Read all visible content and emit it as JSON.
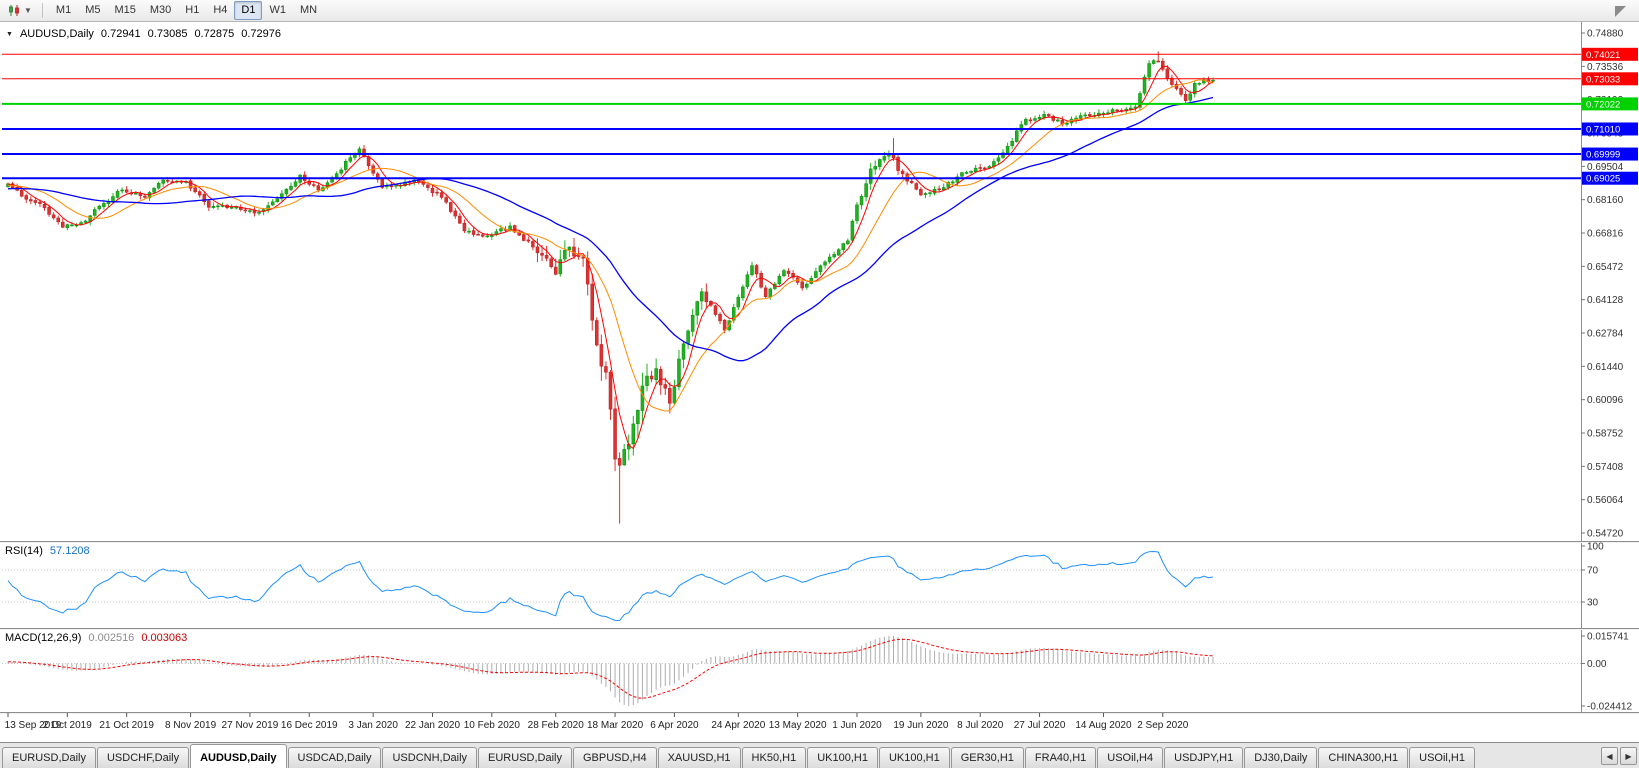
{
  "toolbar": {
    "chart_type_icon": "candlestick-chart-icon",
    "timeframes": [
      "M1",
      "M5",
      "M15",
      "M30",
      "H1",
      "H4",
      "D1",
      "W1",
      "MN"
    ],
    "active": "D1"
  },
  "chart": {
    "title": "AUDUSD,Daily",
    "open": "0.72941",
    "high": "0.73085",
    "low": "0.72875",
    "close": "0.72976"
  },
  "rsi": {
    "label": "RSI(14)",
    "value": "57.1208"
  },
  "macd": {
    "label": "MACD(12,26,9)",
    "value_main": "0.002516",
    "value_signal": "0.003063"
  },
  "tabs": {
    "items": [
      "EURUSD,Daily",
      "USDCHF,Daily",
      "AUDUSD,Daily",
      "USDCAD,Daily",
      "USDCNH,Daily",
      "EURUSD,Daily",
      "GBPUSD,H4",
      "XAUUSD,H1",
      "HK50,H1",
      "UK100,H1",
      "UK100,H1",
      "GER30,H1",
      "FRA40,H1",
      "USOil,H4",
      "USDJPY,H1",
      "DJ30,Daily",
      "CHINA300,H1",
      "USOil,H1"
    ],
    "active_index": 2,
    "scroll_left": "◀",
    "scroll_right": "▶"
  },
  "chart_data": {
    "type": "candlestick",
    "symbol": "AUDUSD",
    "timeframe": "Daily",
    "current_bar": {
      "open": 0.72941,
      "high": 0.73085,
      "low": 0.72875,
      "close": 0.72976
    },
    "y_range": [
      0.5472,
      0.7488
    ],
    "date_range": [
      "2019-09-13",
      "2020-09-17"
    ],
    "price_axis_labels": [
      0.7488,
      0.73536,
      0.72192,
      0.70848,
      0.69504,
      0.6816,
      0.66816,
      0.65472,
      0.64128,
      0.62784,
      0.6144,
      0.60096,
      0.58752,
      0.57408,
      0.56064,
      0.5472
    ],
    "levels": [
      {
        "text": "0.74021",
        "value": 0.74021,
        "color": "#FF0000",
        "width": 1
      },
      {
        "text": "0.73033",
        "value": 0.73033,
        "color": "#FF0000",
        "width": 1
      },
      {
        "text": "0.72022",
        "value": 0.72022,
        "color": "#00D200",
        "width": 2
      },
      {
        "text": "0.71010",
        "value": 0.7101,
        "color": "#0000FF",
        "width": 2
      },
      {
        "text": "0.69999",
        "value": 0.69999,
        "color": "#0000FF",
        "width": 2
      },
      {
        "text": "0.69025",
        "value": 0.69025,
        "color": "#0000FF",
        "width": 2
      }
    ],
    "date_axis": [
      {
        "text": "13 Sep 2019",
        "d": "2019-09-13"
      },
      {
        "text": "2 Oct 2019",
        "d": "2019-10-02"
      },
      {
        "text": "21 Oct 2019",
        "d": "2019-10-21"
      },
      {
        "text": "8 Nov 2019",
        "d": "2019-11-08"
      },
      {
        "text": "27 Nov 2019",
        "d": "2019-11-27"
      },
      {
        "text": "16 Dec 2019",
        "d": "2019-12-16"
      },
      {
        "text": "3 Jan 2020",
        "d": "2020-01-03"
      },
      {
        "text": "22 Jan 2020",
        "d": "2020-01-22"
      },
      {
        "text": "10 Feb 2020",
        "d": "2020-02-10"
      },
      {
        "text": "28 Feb 2020",
        "d": "2020-02-28"
      },
      {
        "text": "18 Mar 2020",
        "d": "2020-03-18"
      },
      {
        "text": "6 Apr 2020",
        "d": "2020-04-06"
      },
      {
        "text": "24 Apr 2020",
        "d": "2020-04-24"
      },
      {
        "text": "13 May 2020",
        "d": "2020-05-13"
      },
      {
        "text": "1 Jun 2020",
        "d": "2020-06-01"
      },
      {
        "text": "19 Jun 2020",
        "d": "2020-06-19"
      },
      {
        "text": "8 Jul 2020",
        "d": "2020-07-08"
      },
      {
        "text": "27 Jul 2020",
        "d": "2020-07-27"
      },
      {
        "text": "14 Aug 2020",
        "d": "2020-08-14"
      },
      {
        "text": "2 Sep 2020",
        "d": "2020-09-02"
      }
    ],
    "price_path": [
      {
        "d": "2019-09-13",
        "c": 0.688
      },
      {
        "d": "2019-09-18",
        "c": 0.683
      },
      {
        "d": "2019-09-24",
        "c": 0.68
      },
      {
        "d": "2019-10-01",
        "c": 0.6705
      },
      {
        "d": "2019-10-08",
        "c": 0.673
      },
      {
        "d": "2019-10-11",
        "c": 0.679
      },
      {
        "d": "2019-10-18",
        "c": 0.6855
      },
      {
        "d": "2019-10-25",
        "c": 0.6825
      },
      {
        "d": "2019-10-31",
        "c": 0.6895
      },
      {
        "d": "2019-11-07",
        "c": 0.689
      },
      {
        "d": "2019-11-14",
        "c": 0.6785
      },
      {
        "d": "2019-11-21",
        "c": 0.6785
      },
      {
        "d": "2019-11-29",
        "c": 0.6765
      },
      {
        "d": "2019-12-06",
        "c": 0.684
      },
      {
        "d": "2019-12-12",
        "c": 0.6915
      },
      {
        "d": "2019-12-18",
        "c": 0.6855
      },
      {
        "d": "2019-12-23",
        "c": 0.6905
      },
      {
        "d": "2019-12-31",
        "c": 0.7021
      },
      {
        "d": "2020-01-07",
        "c": 0.6865
      },
      {
        "d": "2020-01-16",
        "c": 0.6895
      },
      {
        "d": "2020-01-24",
        "c": 0.6825
      },
      {
        "d": "2020-01-31",
        "c": 0.669
      },
      {
        "d": "2020-02-07",
        "c": 0.667
      },
      {
        "d": "2020-02-14",
        "c": 0.671
      },
      {
        "d": "2020-02-21",
        "c": 0.6625
      },
      {
        "d": "2020-02-28",
        "c": 0.6515
      },
      {
        "d": "2020-03-04",
        "c": 0.6625
      },
      {
        "d": "2020-03-09",
        "c": 0.658
      },
      {
        "d": "2020-03-12",
        "c": 0.623
      },
      {
        "d": "2020-03-16",
        "c": 0.612
      },
      {
        "d": "2020-03-18",
        "c": 0.577
      },
      {
        "d": "2020-03-19",
        "c": 0.5745
      },
      {
        "d": "2020-03-23",
        "c": 0.583
      },
      {
        "d": "2020-03-26",
        "c": 0.6065
      },
      {
        "d": "2020-03-31",
        "c": 0.6135
      },
      {
        "d": "2020-04-03",
        "c": 0.5995
      },
      {
        "d": "2020-04-08",
        "c": 0.6235
      },
      {
        "d": "2020-04-14",
        "c": 0.6445
      },
      {
        "d": "2020-04-21",
        "c": 0.629
      },
      {
        "d": "2020-04-29",
        "c": 0.655
      },
      {
        "d": "2020-05-04",
        "c": 0.6425
      },
      {
        "d": "2020-05-08",
        "c": 0.653
      },
      {
        "d": "2020-05-14",
        "c": 0.646
      },
      {
        "d": "2020-05-21",
        "c": 0.6565
      },
      {
        "d": "2020-05-28",
        "c": 0.665
      },
      {
        "d": "2020-06-01",
        "c": 0.6795
      },
      {
        "d": "2020-06-04",
        "c": 0.694
      },
      {
        "d": "2020-06-10",
        "c": 0.7
      },
      {
        "d": "2020-06-15",
        "c": 0.692
      },
      {
        "d": "2020-06-19",
        "c": 0.6835
      },
      {
        "d": "2020-06-26",
        "c": 0.6865
      },
      {
        "d": "2020-07-02",
        "c": 0.6925
      },
      {
        "d": "2020-07-10",
        "c": 0.695
      },
      {
        "d": "2020-07-15",
        "c": 0.7005
      },
      {
        "d": "2020-07-22",
        "c": 0.714
      },
      {
        "d": "2020-07-28",
        "c": 0.716
      },
      {
        "d": "2020-08-03",
        "c": 0.712
      },
      {
        "d": "2020-08-07",
        "c": 0.7155
      },
      {
        "d": "2020-08-13",
        "c": 0.7165
      },
      {
        "d": "2020-08-19",
        "c": 0.7175
      },
      {
        "d": "2020-08-25",
        "c": 0.719
      },
      {
        "d": "2020-08-28",
        "c": 0.7365
      },
      {
        "d": "2020-09-01",
        "c": 0.7375
      },
      {
        "d": "2020-09-04",
        "c": 0.728
      },
      {
        "d": "2020-09-09",
        "c": 0.7215
      },
      {
        "d": "2020-09-11",
        "c": 0.7285
      },
      {
        "d": "2020-09-15",
        "c": 0.73
      },
      {
        "d": "2020-09-17",
        "c": 0.72976
      }
    ],
    "wick_overrides": [
      {
        "d": "2020-03-19",
        "low": 0.551
      },
      {
        "d": "2020-09-01",
        "high": 0.7414
      },
      {
        "d": "2020-06-11",
        "high": 0.7064
      }
    ],
    "moving_averages": [
      {
        "name": "fast",
        "period": 5,
        "color": "#FF0000"
      },
      {
        "name": "medium",
        "period": 13,
        "color": "#FF8C00"
      },
      {
        "name": "slow",
        "period": 34,
        "color": "#0000FF"
      }
    ],
    "style": {
      "candle_up": "#1FB31F",
      "candle_up_border": "#0E870E",
      "candle_down": "#E03131",
      "candle_down_border": "#B02020"
    },
    "indicators": {
      "rsi": {
        "period": 14,
        "current": 57.1208,
        "levels": [
          70,
          30
        ],
        "axis_labels": [
          100,
          70,
          30
        ],
        "range": [
          0,
          100
        ],
        "color": "#1E90FF"
      },
      "macd": {
        "fast": 12,
        "slow": 26,
        "signal": 9,
        "current_main": 0.002516,
        "current_signal": 0.003063,
        "display_range": [
          -0.024412,
          0.015741
        ],
        "axis_labels": [
          {
            "text": "0.015741",
            "value": 0.015741
          },
          {
            "text": "0.00",
            "value": 0
          },
          {
            "text": "-0.024412",
            "value": -0.024412
          }
        ],
        "histogram_color": "#ADADAD",
        "signal_color": "#FF0000"
      }
    }
  }
}
